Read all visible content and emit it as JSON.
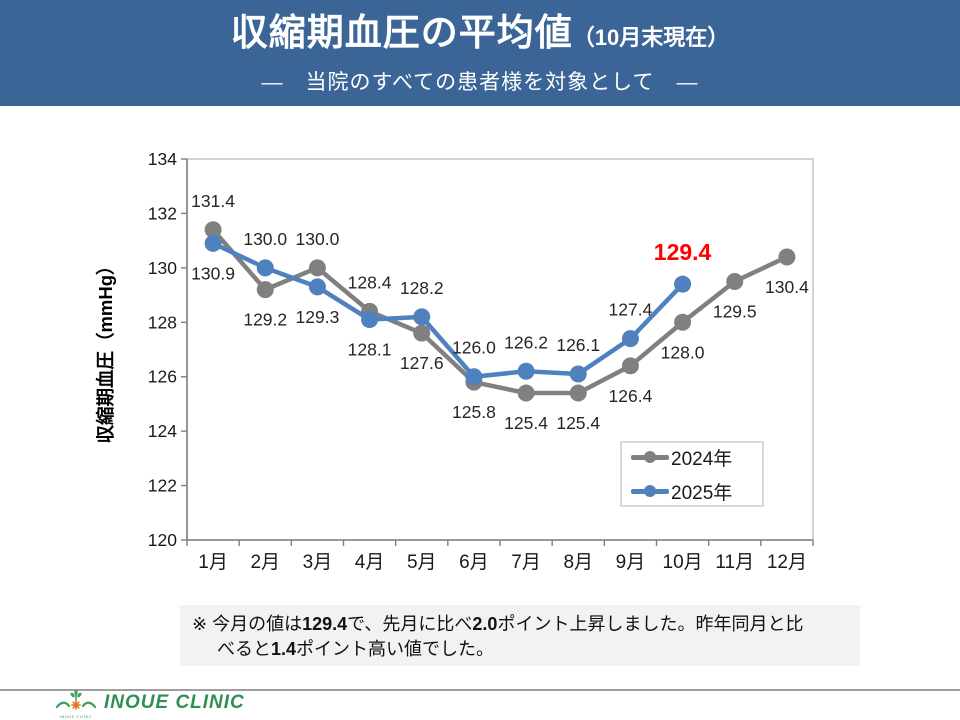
{
  "header": {
    "title": "収縮期血圧の平均値",
    "title_suffix": "（10月末現在）",
    "subtitle": "―　当院のすべての患者様を対象として　―",
    "bg_color": "#3B6596"
  },
  "chart_data": {
    "type": "line",
    "title": "",
    "xlabel": "",
    "ylabel": "収縮期血圧（mmHg）",
    "ylim": [
      120,
      134
    ],
    "yticks": [
      134,
      132,
      130,
      128,
      126,
      124,
      122,
      120
    ],
    "grid": false,
    "legend_position": "inside-bottom-right",
    "categories": [
      "1月",
      "2月",
      "3月",
      "4月",
      "5月",
      "6月",
      "7月",
      "8月",
      "9月",
      "10月",
      "11月",
      "12月"
    ],
    "series": [
      {
        "name": "2024年",
        "color": "#808080",
        "values": [
          131.4,
          129.2,
          130.0,
          128.4,
          127.6,
          125.8,
          125.4,
          125.4,
          126.4,
          128.0,
          129.5,
          130.4
        ],
        "label_pos": [
          "above",
          "below",
          "above",
          "above",
          "below",
          "below",
          "below",
          "below",
          "below",
          "below",
          "below",
          "below"
        ]
      },
      {
        "name": "2025年",
        "color": "#4E81BD",
        "values": [
          130.9,
          130.0,
          129.3,
          128.1,
          128.2,
          126.0,
          126.2,
          126.1,
          127.4,
          129.4
        ],
        "label_pos": [
          "below",
          "above",
          "below",
          "below",
          "above",
          "above",
          "above",
          "above",
          "above",
          "above"
        ],
        "highlight_last": {
          "color": "#FF0000",
          "bold": true,
          "size": 23
        }
      }
    ],
    "colors": {
      "axis": "#808080",
      "plot_border": "#BFBFBF",
      "tick_label": "#1a1a1a",
      "data_label": "#262626"
    }
  },
  "note": {
    "line1": [
      {
        "text": "※ 今月の値は"
      },
      {
        "text": "129.4",
        "bold": true
      },
      {
        "text": "で、先月に比べ"
      },
      {
        "text": "2.0",
        "bold": true
      },
      {
        "text": "ポイント上昇しました。昨年同月と比"
      }
    ],
    "line2": [
      {
        "text": "べると"
      },
      {
        "text": "1.4",
        "bold": true
      },
      {
        "text": "ポイント高い値でした。"
      }
    ]
  },
  "footer": {
    "clinic_name": "INOUE CLINIC",
    "logo_caption": "INOUE CLINIC",
    "logo_green": "#3E9E5B",
    "logo_orange": "#E2761B"
  }
}
